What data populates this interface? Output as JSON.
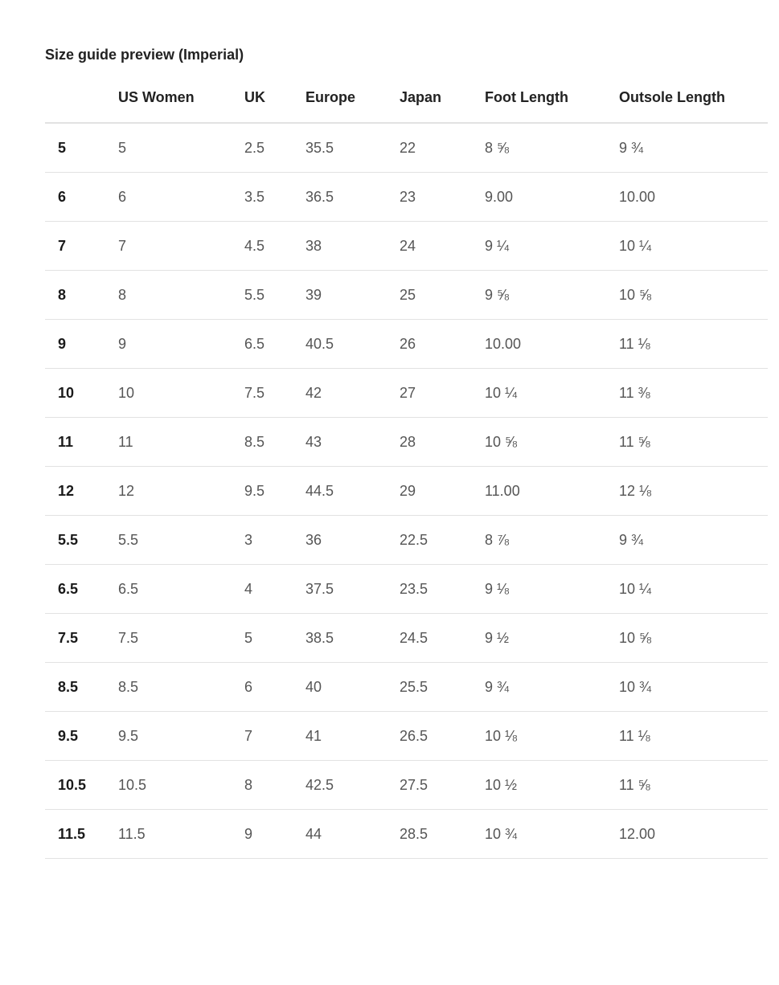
{
  "title": "Size guide preview (Imperial)",
  "columns": [
    "",
    "US Women",
    "UK",
    "Europe",
    "Japan",
    "Foot Length",
    "Outsole Length"
  ],
  "rows": [
    [
      "5",
      "5",
      "2.5",
      "35.5",
      "22",
      "8 ⅝",
      "9 ¾"
    ],
    [
      "6",
      "6",
      "3.5",
      "36.5",
      "23",
      "9.00",
      "10.00"
    ],
    [
      "7",
      "7",
      "4.5",
      "38",
      "24",
      "9 ¼",
      "10 ¼"
    ],
    [
      "8",
      "8",
      "5.5",
      "39",
      "25",
      "9 ⅝",
      "10 ⅝"
    ],
    [
      "9",
      "9",
      "6.5",
      "40.5",
      "26",
      "10.00",
      "11 ⅛"
    ],
    [
      "10",
      "10",
      "7.5",
      "42",
      "27",
      "10 ¼",
      "11 ⅜"
    ],
    [
      "11",
      "11",
      "8.5",
      "43",
      "28",
      "10 ⅝",
      "11 ⅝"
    ],
    [
      "12",
      "12",
      "9.5",
      "44.5",
      "29",
      "11.00",
      "12 ⅛"
    ],
    [
      "5.5",
      "5.5",
      "3",
      "36",
      "22.5",
      "8 ⅞",
      "9 ¾"
    ],
    [
      "6.5",
      "6.5",
      "4",
      "37.5",
      "23.5",
      "9 ⅛",
      "10 ¼"
    ],
    [
      "7.5",
      "7.5",
      "5",
      "38.5",
      "24.5",
      "9 ½",
      "10 ⅝"
    ],
    [
      "8.5",
      "8.5",
      "6",
      "40",
      "25.5",
      "9 ¾",
      "10 ¾"
    ],
    [
      "9.5",
      "9.5",
      "7",
      "41",
      "26.5",
      "10 ⅛",
      "11 ⅛"
    ],
    [
      "10.5",
      "10.5",
      "8",
      "42.5",
      "27.5",
      "10 ½",
      "11 ⅝"
    ],
    [
      "11.5",
      "11.5",
      "9",
      "44",
      "28.5",
      "10 ¾",
      "12.00"
    ]
  ]
}
